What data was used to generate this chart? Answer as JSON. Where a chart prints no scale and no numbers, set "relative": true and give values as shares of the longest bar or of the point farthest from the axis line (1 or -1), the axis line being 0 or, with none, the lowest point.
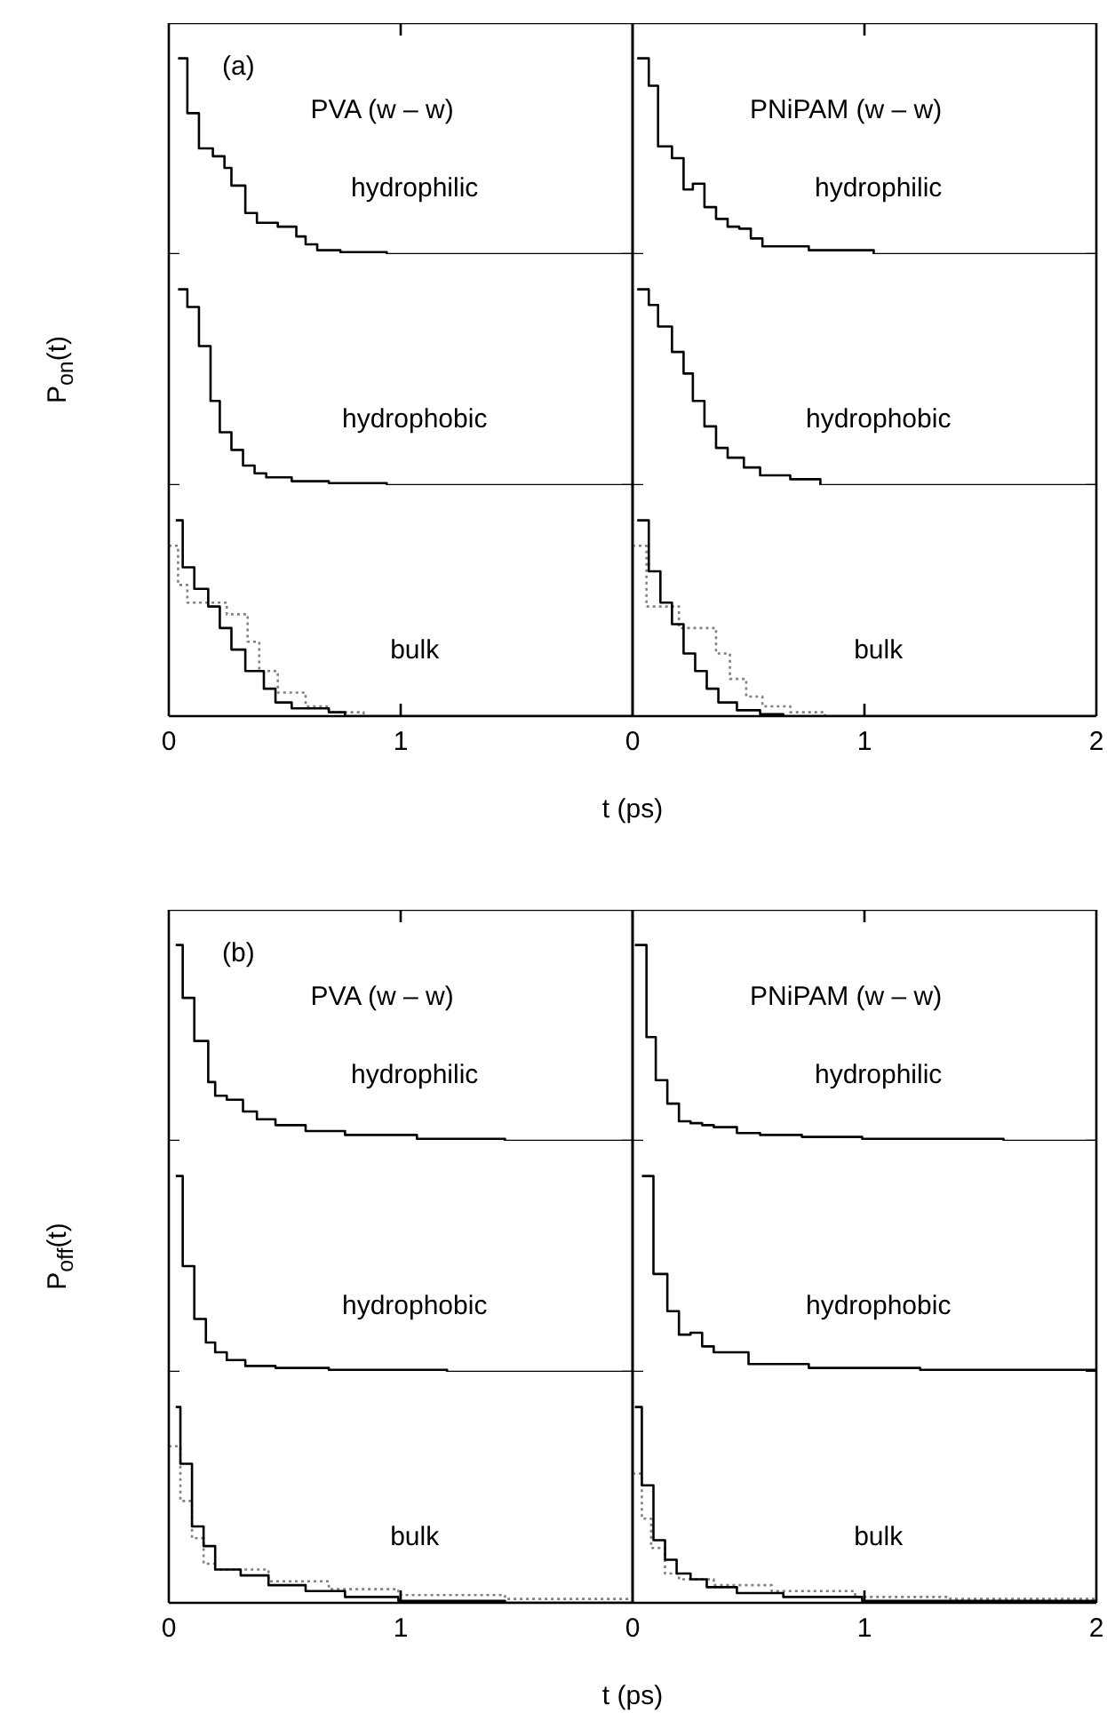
{
  "chart_data": [
    {
      "type": "step",
      "relative": true,
      "xlim": [
        0,
        2
      ],
      "xticks": [
        0,
        1
      ],
      "tick_labels": false,
      "annotations": [
        "(a)",
        "PVA (w – w)",
        "hydrophilic"
      ],
      "series": [
        {
          "color": "#000000",
          "x": [
            0.04,
            0.08,
            0.13,
            0.19,
            0.24,
            0.27,
            0.33,
            0.38,
            0.47,
            0.55,
            0.59,
            0.64,
            0.74,
            0.94,
            2
          ],
          "values": [
            1,
            0.72,
            0.54,
            0.5,
            0.44,
            0.35,
            0.21,
            0.16,
            0.14,
            0.09,
            0.05,
            0.02,
            0.01,
            0,
            0
          ]
        }
      ]
    },
    {
      "type": "step",
      "relative": true,
      "xlim": [
        0,
        2
      ],
      "tick_labels": false,
      "ylabel": "P$_{on}$(t)",
      "annotations": [
        "hydrophobic"
      ],
      "series": [
        {
          "color": "#000000",
          "x": [
            0.04,
            0.08,
            0.13,
            0.18,
            0.22,
            0.27,
            0.32,
            0.37,
            0.42,
            0.53,
            0.69,
            0.94,
            2
          ],
          "values": [
            1,
            0.91,
            0.71,
            0.43,
            0.27,
            0.18,
            0.1,
            0.06,
            0.04,
            0.02,
            0.01,
            0,
            0
          ]
        }
      ]
    },
    {
      "type": "step",
      "relative": true,
      "xlim": [
        0,
        2
      ],
      "xticks": [
        0,
        1
      ],
      "tick_labels": "x",
      "xlabel": "t (ps)",
      "annotations": [
        "bulk"
      ],
      "series": [
        {
          "color": "#000000",
          "x": [
            0.03,
            0.06,
            0.11,
            0.17,
            0.22,
            0.27,
            0.33,
            0.41,
            0.46,
            0.53,
            0.69,
            0.76,
            2
          ],
          "values": [
            1,
            0.76,
            0.65,
            0.56,
            0.45,
            0.34,
            0.23,
            0.14,
            0.07,
            0.04,
            0.02,
            0,
            0
          ]
        },
        {
          "color": "#808080",
          "line_style": "dotted",
          "x": [
            0,
            0.04,
            0.08,
            0.25,
            0.34,
            0.39,
            0.47,
            0.59,
            0.69,
            0.84
          ],
          "values": [
            0.87,
            0.67,
            0.58,
            0.52,
            0.38,
            0.23,
            0.12,
            0.05,
            0.02,
            0
          ]
        }
      ]
    },
    {
      "type": "step",
      "relative": true,
      "xlim": [
        0,
        2
      ],
      "xticks": [
        0,
        1,
        2
      ],
      "tick_labels": false,
      "annotations": [
        "PNiPAM (w – w)",
        "hydrophilic"
      ],
      "series": [
        {
          "color": "#000000",
          "x": [
            0.02,
            0.07,
            0.11,
            0.17,
            0.22,
            0.26,
            0.31,
            0.36,
            0.41,
            0.46,
            0.51,
            0.56,
            0.76,
            1.04,
            2
          ],
          "values": [
            1,
            0.86,
            0.55,
            0.49,
            0.33,
            0.36,
            0.24,
            0.18,
            0.14,
            0.13,
            0.08,
            0.04,
            0.02,
            0,
            0
          ]
        }
      ]
    },
    {
      "type": "step",
      "relative": true,
      "xlim": [
        0,
        2
      ],
      "tick_labels": false,
      "annotations": [
        "hydrophobic"
      ],
      "series": [
        {
          "color": "#000000",
          "x": [
            0.02,
            0.07,
            0.11,
            0.17,
            0.22,
            0.26,
            0.31,
            0.36,
            0.41,
            0.48,
            0.55,
            0.68,
            0.81,
            2
          ],
          "values": [
            1,
            0.92,
            0.81,
            0.68,
            0.57,
            0.43,
            0.3,
            0.19,
            0.14,
            0.09,
            0.05,
            0.03,
            0,
            0
          ]
        }
      ]
    },
    {
      "type": "step",
      "relative": true,
      "xlim": [
        0,
        2
      ],
      "xticks": [
        0,
        1,
        2
      ],
      "tick_labels": "x",
      "annotations": [
        "bulk"
      ],
      "series": [
        {
          "color": "#000000",
          "x": [
            0.02,
            0.07,
            0.12,
            0.17,
            0.22,
            0.27,
            0.32,
            0.37,
            0.45,
            0.55,
            0.65,
            2
          ],
          "values": [
            1,
            0.74,
            0.58,
            0.47,
            0.32,
            0.23,
            0.14,
            0.07,
            0.03,
            0.01,
            0,
            0
          ]
        },
        {
          "color": "#808080",
          "line_style": "dotted",
          "x": [
            0,
            0.06,
            0.2,
            0.36,
            0.42,
            0.49,
            0.56,
            0.68,
            0.83
          ],
          "values": [
            0.87,
            0.56,
            0.45,
            0.32,
            0.19,
            0.1,
            0.05,
            0.02,
            0
          ]
        }
      ]
    },
    {
      "type": "step",
      "relative": true,
      "xlim": [
        0,
        2
      ],
      "xticks": [
        0,
        1
      ],
      "tick_labels": false,
      "annotations": [
        "(b)",
        "PVA (w – w)",
        "hydrophilic"
      ],
      "series": [
        {
          "color": "#000000",
          "x": [
            0.03,
            0.06,
            0.11,
            0.17,
            0.2,
            0.25,
            0.32,
            0.38,
            0.46,
            0.59,
            0.76,
            1.07,
            1.45,
            2
          ],
          "values": [
            1,
            0.73,
            0.51,
            0.3,
            0.23,
            0.21,
            0.15,
            0.11,
            0.08,
            0.05,
            0.03,
            0.01,
            0,
            0
          ]
        }
      ]
    },
    {
      "type": "step",
      "relative": true,
      "xlim": [
        0,
        2
      ],
      "tick_labels": false,
      "ylabel": "P$_{off}$(t)",
      "annotations": [
        "hydrophobic"
      ],
      "series": [
        {
          "color": "#000000",
          "x": [
            0.03,
            0.06,
            0.11,
            0.16,
            0.2,
            0.25,
            0.33,
            0.46,
            0.69,
            1.2,
            2
          ],
          "values": [
            1,
            0.54,
            0.27,
            0.15,
            0.1,
            0.06,
            0.03,
            0.02,
            0.01,
            0,
            0
          ]
        }
      ]
    },
    {
      "type": "step",
      "relative": true,
      "xlim": [
        0,
        2
      ],
      "xticks": [
        0,
        1
      ],
      "tick_labels": "x",
      "xlabel": "t (ps)",
      "annotations": [
        "bulk"
      ],
      "series": [
        {
          "color": "#000000",
          "x": [
            0.03,
            0.05,
            0.1,
            0.15,
            0.2,
            0.31,
            0.43,
            0.59,
            0.76,
            0.99,
            1.45,
            2
          ],
          "values": [
            1,
            0.71,
            0.39,
            0.29,
            0.17,
            0.14,
            0.09,
            0.06,
            0.03,
            0.01,
            0,
            0
          ]
        },
        {
          "color": "#808080",
          "line_style": "dotted",
          "x": [
            0,
            0.05,
            0.1,
            0.15,
            0.2,
            0.43,
            0.69,
            0.99,
            1.45,
            2
          ],
          "values": [
            0.8,
            0.52,
            0.33,
            0.2,
            0.17,
            0.11,
            0.07,
            0.04,
            0.02,
            0.02
          ]
        }
      ]
    },
    {
      "type": "step",
      "relative": true,
      "xlim": [
        0,
        2
      ],
      "xticks": [
        0,
        1,
        2
      ],
      "tick_labels": false,
      "annotations": [
        "PNiPAM (w – w)",
        "hydrophilic"
      ],
      "series": [
        {
          "color": "#000000",
          "x": [
            0.01,
            0.06,
            0.1,
            0.15,
            0.2,
            0.25,
            0.3,
            0.35,
            0.45,
            0.55,
            0.73,
            0.99,
            1.6,
            2
          ],
          "values": [
            1,
            0.53,
            0.31,
            0.19,
            0.1,
            0.09,
            0.08,
            0.07,
            0.04,
            0.03,
            0.02,
            0.01,
            0,
            0
          ]
        }
      ]
    },
    {
      "type": "step",
      "relative": true,
      "xlim": [
        0,
        2
      ],
      "tick_labels": false,
      "annotations": [
        "hydrophobic"
      ],
      "series": [
        {
          "color": "#000000",
          "x": [
            0.04,
            0.09,
            0.15,
            0.2,
            0.25,
            0.3,
            0.35,
            0.5,
            0.76,
            1.24,
            2
          ],
          "values": [
            1,
            0.5,
            0.31,
            0.19,
            0.2,
            0.13,
            0.1,
            0.04,
            0.02,
            0.01,
            0.01
          ]
        }
      ]
    },
    {
      "type": "step",
      "relative": true,
      "xlim": [
        0,
        2
      ],
      "xticks": [
        0,
        1,
        2
      ],
      "tick_labels": "x",
      "annotations": [
        "bulk"
      ],
      "series": [
        {
          "color": "#000000",
          "x": [
            0.01,
            0.04,
            0.09,
            0.14,
            0.19,
            0.25,
            0.32,
            0.45,
            0.65,
            0.99,
            1.49,
            2
          ],
          "values": [
            1,
            0.6,
            0.32,
            0.22,
            0.15,
            0.12,
            0.08,
            0.05,
            0.03,
            0.01,
            0.01,
            0.01
          ]
        },
        {
          "color": "#808080",
          "line_style": "dotted",
          "x": [
            0,
            0.04,
            0.08,
            0.14,
            0.2,
            0.35,
            0.6,
            0.96,
            1.37,
            2
          ],
          "values": [
            0.66,
            0.43,
            0.28,
            0.15,
            0.12,
            0.09,
            0.06,
            0.03,
            0.02,
            0.02
          ]
        }
      ]
    }
  ]
}
